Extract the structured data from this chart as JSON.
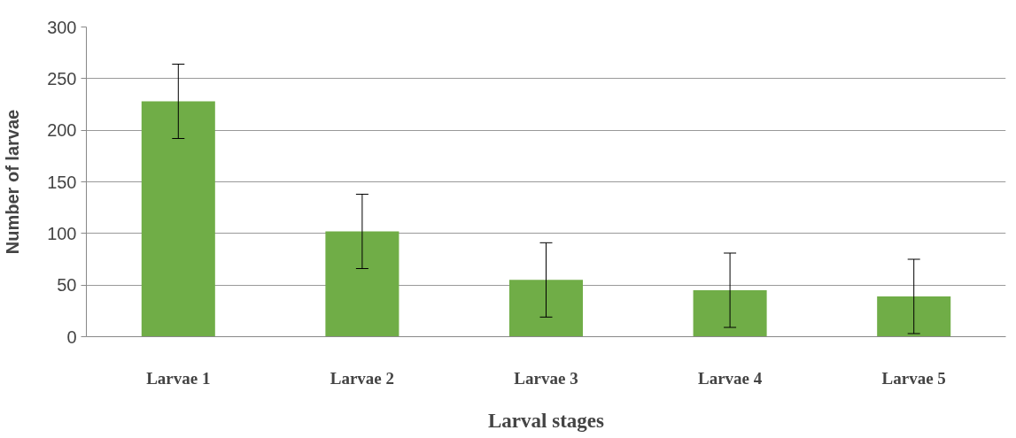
{
  "chart_data": {
    "type": "bar",
    "xlabel": "Larval stages",
    "ylabel": "Number of larvae",
    "categories": [
      "Larvae 1",
      "Larvae 2",
      "Larvae 3",
      "Larvae 4",
      "Larvae 5"
    ],
    "values": [
      228,
      102,
      55,
      45,
      39
    ],
    "errors": [
      36,
      36,
      36,
      36,
      36
    ],
    "color": "#70ad47",
    "ylim": [
      0,
      300
    ],
    "yticks": [
      0,
      50,
      100,
      150,
      200,
      250,
      300
    ],
    "grid": "y"
  }
}
